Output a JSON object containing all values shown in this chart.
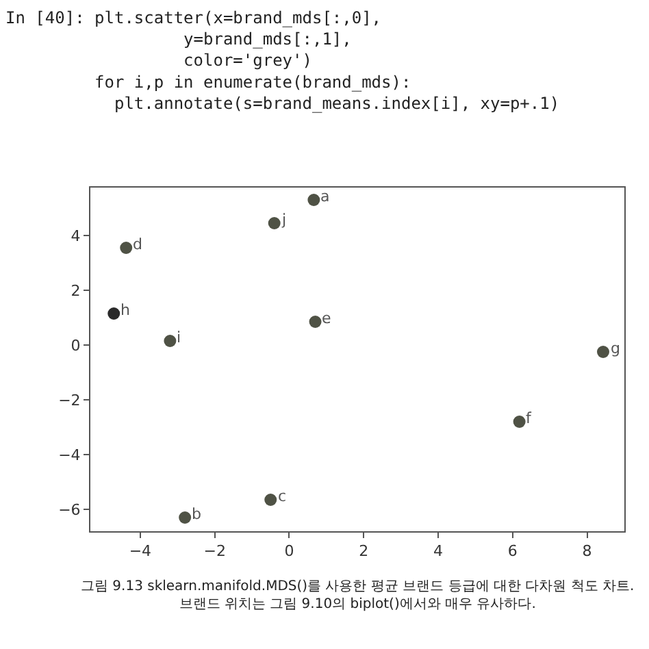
{
  "chart_data": {
    "type": "scatter",
    "marker": "circle",
    "x": [
      0.66,
      -2.8,
      -0.5,
      -4.38,
      0.7,
      6.18,
      8.43,
      -4.71,
      -3.2,
      -0.4
    ],
    "values": [
      5.3,
      -6.3,
      -5.65,
      3.55,
      0.85,
      -2.8,
      -0.25,
      1.15,
      0.15,
      4.45
    ],
    "colors": [
      "#4f5245",
      "#4f5245",
      "#4f5245",
      "#4f5245",
      "#4f5245",
      "#4f5245",
      "#4f5245",
      "#2a2a2a",
      "#4f5245",
      "#4f5245"
    ],
    "xlim": [
      -5.34,
      9.0
    ],
    "ylim": [
      -6.8,
      5.75
    ],
    "xticks": [
      {
        "value": -4,
        "label": "−4"
      },
      {
        "value": -2,
        "label": "−2"
      },
      0,
      2,
      4,
      6,
      8
    ],
    "yticks": [
      {
        "value": -6,
        "label": "−6"
      },
      {
        "value": -4,
        "label": "−4"
      },
      {
        "value": -2,
        "label": "−2"
      },
      0,
      2,
      4
    ],
    "annotations": [
      {
        "text": "a",
        "x": 0.66,
        "y": 5.3
      },
      {
        "text": "b",
        "x": -2.8,
        "y": -6.3
      },
      {
        "text": "c",
        "x": -0.5,
        "y": -5.65
      },
      {
        "text": "d",
        "x": -4.38,
        "y": 3.55
      },
      {
        "text": "e",
        "x": 0.7,
        "y": 0.85
      },
      {
        "text": "f",
        "x": 6.18,
        "y": -2.8
      },
      {
        "text": "g",
        "x": 8.43,
        "y": -0.25
      },
      {
        "text": "h",
        "x": -4.71,
        "y": 1.15
      },
      {
        "text": "i",
        "x": -3.2,
        "y": 0.15
      },
      {
        "text": "j",
        "x": -0.4,
        "y": 4.45
      },
      "In [40]: plt.scatter(x=brand_mds[:,0],\n                  y=brand_mds[:,1],\n                  color='grey')\n         for i,p in enumerate(brand_mds):\n           plt.annotate(s=brand_means.index[i], xy=p+.1)",
      "그림 9.13 sklearn.manifold.MDS()를 사용한 평균 브랜드 등급에 대한 다차원 척도 차트.\n브랜드 위치는 그림 9.10의 biplot()에서와 매우 유사하다."
    ]
  }
}
